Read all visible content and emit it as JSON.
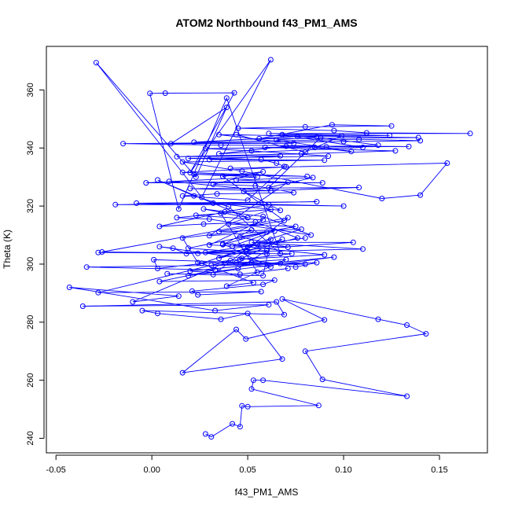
{
  "chart_data": {
    "type": "line",
    "title": "ATOM2 Northbound f43_PM1_AMS",
    "xlabel": "f43_PM1_AMS",
    "ylabel": "Theta (K)",
    "xlim": [
      -0.055,
      0.175
    ],
    "ylim": [
      235,
      375
    ],
    "xticks": [
      -0.05,
      0.0,
      0.05,
      0.1,
      0.15
    ],
    "xtick_labels": [
      "-0.05",
      "0.00",
      "0.05",
      "0.10",
      "0.15"
    ],
    "yticks": [
      240,
      260,
      280,
      300,
      320,
      340,
      360
    ],
    "ytick_labels": [
      "240",
      "260",
      "280",
      "300",
      "320",
      "340",
      "360"
    ],
    "grid": false,
    "marker": "open-circle",
    "series": [
      {
        "color": "#0000ff",
        "points": [
          [
            0.028,
            241.5
          ],
          [
            0.031,
            240.5
          ],
          [
            0.042,
            245.0
          ],
          [
            0.046,
            244.0
          ],
          [
            0.047,
            251.2
          ],
          [
            0.05,
            250.9
          ],
          [
            0.087,
            251.3
          ],
          [
            0.052,
            257.0
          ],
          [
            0.053,
            260.0
          ],
          [
            0.058,
            260.0
          ],
          [
            0.133,
            254.5
          ],
          [
            0.089,
            260.3
          ],
          [
            0.08,
            270.0
          ],
          [
            0.143,
            276.0
          ],
          [
            0.133,
            279.0
          ],
          [
            0.118,
            281.0
          ],
          [
            0.068,
            288.0
          ],
          [
            0.09,
            280.8
          ],
          [
            0.049,
            274.2
          ],
          [
            0.044,
            277.5
          ],
          [
            0.016,
            262.6
          ],
          [
            0.068,
            267.3
          ],
          [
            0.05,
            283.0
          ],
          [
            0.036,
            281.0
          ],
          [
            0.003,
            283.0
          ],
          [
            -0.005,
            284.0
          ],
          [
            0.069,
            282.6
          ],
          [
            0.065,
            287.0
          ],
          [
            -0.036,
            285.5
          ],
          [
            0.061,
            286.0
          ],
          [
            0.033,
            284.0
          ],
          [
            -0.043,
            292.0
          ],
          [
            0.014,
            289.0
          ],
          [
            -0.01,
            287.0
          ],
          [
            0.041,
            301.2
          ],
          [
            -0.028,
            290.2
          ],
          [
            0.057,
            290.5
          ],
          [
            0.024,
            289.4
          ],
          [
            0.021,
            290.7
          ],
          [
            0.058,
            293.0
          ],
          [
            0.064,
            294.5
          ],
          [
            0.004,
            294.0
          ],
          [
            0.033,
            298.0
          ],
          [
            -0.034,
            299.0
          ],
          [
            0.08,
            300.0
          ],
          [
            0.052,
            300.5
          ],
          [
            0.031,
            299.6
          ],
          [
            0.086,
            300.5
          ],
          [
            0.075,
            299.0
          ],
          [
            0.047,
            302.0
          ],
          [
            0.004,
            306.0
          ],
          [
            0.011,
            305.5
          ],
          [
            0.018,
            303.6
          ],
          [
            0.105,
            307.5
          ],
          [
            0.052,
            307.5
          ],
          [
            0.11,
            305.2
          ],
          [
            0.028,
            304.0
          ],
          [
            -0.028,
            304.0
          ],
          [
            0.073,
            303.6
          ],
          [
            0.003,
            298.5
          ],
          [
            0.001,
            301.5
          ],
          [
            0.067,
            300.2
          ],
          [
            0.024,
            300.5
          ],
          [
            0.016,
            309.0
          ],
          [
            0.052,
            311.8
          ],
          [
            0.037,
            306.7
          ],
          [
            0.06,
            311.0
          ],
          [
            0.019,
            305.5
          ],
          [
            0.06,
            303.5
          ],
          [
            -0.026,
            304.2
          ],
          [
            0.071,
            316.0
          ],
          [
            0.032,
            296.4
          ],
          [
            0.008,
            296.7
          ],
          [
            0.058,
            296.0
          ],
          [
            0.062,
            308.5
          ],
          [
            0.035,
            302.0
          ],
          [
            0.076,
            309.0
          ],
          [
            0.054,
            314.5
          ],
          [
            0.027,
            313.8
          ],
          [
            0.004,
            313.0
          ],
          [
            0.038,
            318.0
          ],
          [
            0.061,
            320.5
          ],
          [
            -0.019,
            320.5
          ],
          [
            0.086,
            321.5
          ],
          [
            -0.008,
            321.0
          ],
          [
            0.1,
            320.0
          ],
          [
            0.032,
            321.0
          ],
          [
            0.067,
            318.5
          ],
          [
            0.048,
            325.0
          ],
          [
            0.108,
            326.4
          ],
          [
            0.02,
            326.0
          ],
          [
            0.062,
            325.2
          ],
          [
            0.009,
            328.5
          ],
          [
            0.089,
            328.0
          ],
          [
            -0.003,
            328.0
          ],
          [
            0.055,
            330.0
          ],
          [
            0.022,
            331.0
          ],
          [
            0.081,
            330.2
          ],
          [
            0.016,
            331.6
          ],
          [
            0.07,
            333.5
          ],
          [
            0.041,
            333.0
          ],
          [
            0.154,
            334.8
          ],
          [
            0.14,
            323.8
          ],
          [
            0.12,
            322.6
          ],
          [
            0.047,
            332.0
          ],
          [
            0.016,
            335.2
          ],
          [
            0.09,
            335.8
          ],
          [
            0.03,
            336.0
          ],
          [
            0.067,
            337.3
          ],
          [
            0.013,
            337.0
          ],
          [
            0.078,
            338.0
          ],
          [
            0.127,
            339.0
          ],
          [
            0.059,
            340.2
          ],
          [
            0.134,
            340.5
          ],
          [
            0.036,
            341.0
          ],
          [
            -0.015,
            341.5
          ],
          [
            0.1,
            342.2
          ],
          [
            0.14,
            342.5
          ],
          [
            0.108,
            343.0
          ],
          [
            0.022,
            342.0
          ],
          [
            0.076,
            344.0
          ],
          [
            0.124,
            344.3
          ],
          [
            0.061,
            345.0
          ],
          [
            0.166,
            345.0
          ],
          [
            0.112,
            345.2
          ],
          [
            0.095,
            346.0
          ],
          [
            0.045,
            346.8
          ],
          [
            0.08,
            347.3
          ],
          [
            0.125,
            347.6
          ],
          [
            0.094,
            348.0
          ],
          [
            0.056,
            343.2
          ],
          [
            0.139,
            343.6
          ],
          [
            0.035,
            344.6
          ],
          [
            0.074,
            341.6
          ],
          [
            0.01,
            341.5
          ],
          [
            0.039,
            354.0
          ],
          [
            0.023,
            330.0
          ],
          [
            -0.029,
            369.4
          ],
          [
            0.026,
            323.0
          ],
          [
            0.062,
            370.4
          ],
          [
            0.02,
            331.5
          ],
          [
            0.043,
            359.0
          ],
          [
            0.007,
            358.9
          ],
          [
            -0.001,
            358.8
          ],
          [
            0.014,
            319.0
          ],
          [
            0.039,
            357.2
          ],
          [
            0.067,
            303.6
          ],
          [
            0.04,
            319.8
          ],
          [
            0.022,
            323.5
          ],
          [
            0.003,
            329.0
          ],
          [
            0.05,
            316.0
          ],
          [
            0.027,
            319.0
          ],
          [
            0.058,
            316.4
          ],
          [
            0.083,
            310.0
          ],
          [
            0.03,
            315.5
          ],
          [
            0.013,
            316.0
          ],
          [
            0.036,
            317.5
          ],
          [
            0.055,
            297.2
          ],
          [
            0.071,
            298.5
          ],
          [
            0.046,
            296.5
          ],
          [
            0.02,
            297.6
          ],
          [
            0.095,
            302.4
          ],
          [
            0.019,
            296.0
          ],
          [
            0.045,
            298.5
          ],
          [
            0.06,
            304.7
          ],
          [
            0.024,
            303.7
          ],
          [
            0.08,
            309.0
          ],
          [
            0.048,
            306.0
          ],
          [
            0.078,
            312.0
          ],
          [
            0.035,
            311.2
          ],
          [
            0.069,
            315.0
          ],
          [
            0.037,
            330.2
          ],
          [
            0.058,
            331.8
          ],
          [
            0.032,
            327.5
          ],
          [
            0.054,
            327.0
          ],
          [
            0.074,
            324.6
          ],
          [
            0.034,
            324.2
          ],
          [
            0.016,
            323.5
          ],
          [
            0.05,
            322.0
          ],
          [
            0.069,
            333.6
          ],
          [
            0.065,
            334.8
          ],
          [
            0.057,
            336.0
          ],
          [
            0.019,
            336.4
          ],
          [
            0.092,
            337.2
          ],
          [
            0.052,
            339.0
          ],
          [
            0.028,
            339.8
          ],
          [
            0.091,
            340.4
          ],
          [
            0.07,
            340.6
          ],
          [
            0.035,
            338.0
          ],
          [
            0.11,
            340.2
          ],
          [
            0.068,
            344.6
          ],
          [
            0.099,
            344.2
          ],
          [
            0.08,
            338.6
          ],
          [
            0.044,
            344.6
          ],
          [
            0.086,
            343.8
          ],
          [
            0.065,
            342.8
          ],
          [
            0.104,
            338.8
          ],
          [
            0.085,
            340.2
          ],
          [
            0.118,
            341.0
          ],
          [
            0.088,
            343.6
          ],
          [
            0.061,
            326.4
          ],
          [
            0.084,
            329.8
          ],
          [
            0.044,
            329.0
          ],
          [
            0.071,
            328.2
          ],
          [
            0.03,
            309.8
          ],
          [
            0.064,
            311.4
          ],
          [
            0.042,
            306.2
          ],
          [
            0.055,
            306.8
          ],
          [
            0.026,
            300.3
          ],
          [
            0.053,
            293.6
          ],
          [
            0.039,
            292.4
          ],
          [
            0.07,
            301.6
          ],
          [
            0.044,
            300.4
          ],
          [
            0.062,
            299.0
          ],
          [
            0.037,
            307.0
          ],
          [
            0.071,
            305.8
          ],
          [
            0.046,
            309.4
          ],
          [
            0.075,
            313.0
          ],
          [
            0.04,
            313.8
          ],
          [
            0.062,
            318.8
          ],
          [
            0.023,
            316.8
          ],
          [
            0.058,
            315.2
          ],
          [
            0.03,
            306.6
          ],
          [
            0.05,
            306.0
          ],
          [
            0.09,
            303.2
          ],
          [
            0.046,
            301.7
          ],
          [
            0.068,
            308.6
          ],
          [
            0.049,
            304.4
          ]
        ]
      }
    ]
  }
}
